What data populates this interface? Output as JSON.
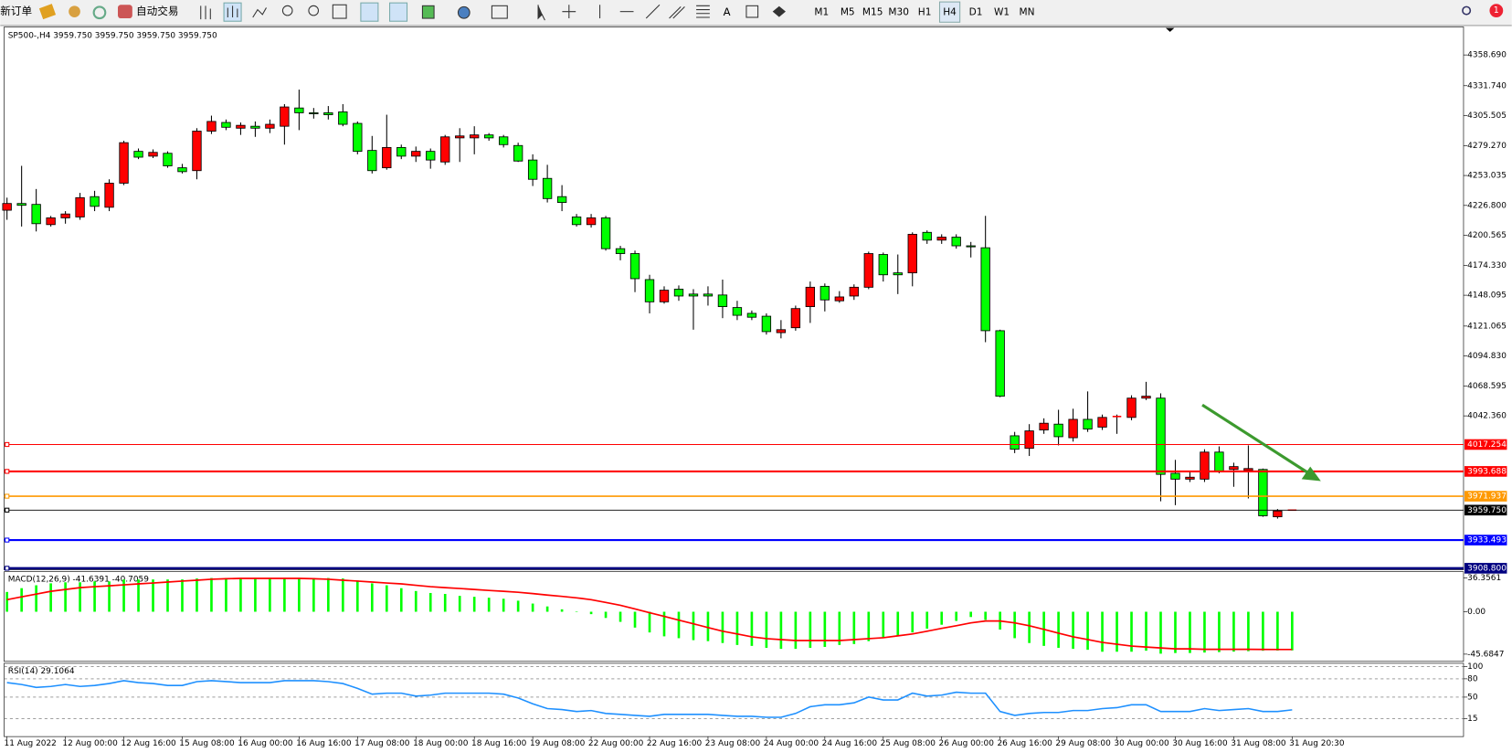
{
  "toolbar": {
    "new_order": "新订单",
    "auto_trading": "自动交易",
    "timeframes": [
      "M1",
      "M5",
      "M15",
      "M30",
      "H1",
      "H4",
      "D1",
      "W1",
      "MN"
    ],
    "active_timeframe": 5,
    "badge": "1"
  },
  "chart_data": [
    {
      "type": "candlestick",
      "title": "SP500-,H4  3959.750 3959.750 3959.750 3959.750",
      "categories": [
        "11 Aug 2022",
        null,
        null,
        null,
        "12 Aug 00:00",
        null,
        null,
        null,
        "12 Aug 16:00",
        null,
        null,
        null,
        "15 Aug 08:00",
        null,
        null,
        null,
        "16 Aug 00:00",
        null,
        null,
        null,
        "16 Aug 16:00",
        null,
        null,
        null,
        "17 Aug 08:00",
        null,
        null,
        null,
        "18 Aug 00:00",
        null,
        null,
        null,
        "18 Aug 16:00",
        null,
        null,
        null,
        "19 Aug 08:00",
        null,
        null,
        null,
        "22 Aug 00:00",
        null,
        null,
        null,
        "22 Aug 16:00",
        null,
        null,
        null,
        "23 Aug 08:00",
        null,
        null,
        null,
        "24 Aug 00:00",
        null,
        null,
        null,
        "24 Aug 16:00",
        null,
        null,
        null,
        "25 Aug 08:00",
        null,
        null,
        null,
        "26 Aug 00:00",
        null,
        null,
        null,
        "26 Aug 16:00",
        null,
        null,
        null,
        "29 Aug 08:00",
        null,
        null,
        null,
        "30 Aug 00:00",
        null,
        null,
        null,
        "30 Aug 16:00",
        null,
        null,
        null,
        "31 Aug 08:00",
        null,
        null,
        null,
        "31 Aug 20:30"
      ],
      "open": [
        4222.6,
        4228.5,
        4227.7,
        4210.0,
        4215.9,
        4216.7,
        4234.5,
        4225.2,
        4246.3,
        4274.2,
        4270.0,
        4272.5,
        4259.8,
        4257.3,
        4291.9,
        4299.5,
        4294.5,
        4296.2,
        4294.5,
        4296.2,
        4312.2,
        4308.0,
        4308.0,
        4308.8,
        4298.7,
        4275.0,
        4259.8,
        4277.6,
        4270.0,
        4274.2,
        4264.9,
        4286.0,
        4286.0,
        4288.6,
        4286.9,
        4279.3,
        4266.6,
        4250.5,
        4234.5,
        4216.7,
        4210.0,
        4215.9,
        4188.9,
        4184.6,
        4161.8,
        4142.3,
        4153.4,
        4149.1,
        4149.1,
        4148.3,
        4137.3,
        4132.2,
        4129.7,
        4115.3,
        4119.6,
        4138.1,
        4155.9,
        4143.2,
        4147.4,
        4155.1,
        4183.8,
        4167.7,
        4167.7,
        4203.2,
        4196.4,
        4199.0,
        4191.4,
        4189.7,
        4117.0,
        4024.9,
        4013.9,
        4030.0,
        4035.1,
        4023.2,
        4039.3,
        4032.5,
        4041.0,
        4041.0,
        4057.9,
        4057.9,
        3992.0,
        3986.9,
        3986.9,
        4010.6,
        3995.4,
        3994.5,
        3995.4,
        3953.9,
        3959.75
      ],
      "high": [
        4233.6,
        4261.5,
        4241.2,
        4217.6,
        4221.8,
        4237.8,
        4239.6,
        4249.7,
        4283.5,
        4276.7,
        4275.9,
        4274.2,
        4263.2,
        4294.5,
        4305.5,
        4302.1,
        4299.5,
        4300.4,
        4302.1,
        4315.6,
        4328.3,
        4312.2,
        4313.9,
        4315.6,
        4300.4,
        4287.7,
        4306.3,
        4280.1,
        4278.4,
        4276.7,
        4288.6,
        4294.5,
        4296.2,
        4290.2,
        4288.6,
        4281.8,
        4271.6,
        4262.4,
        4244.6,
        4219.3,
        4219.3,
        4217.6,
        4191.4,
        4187.2,
        4166.0,
        4155.9,
        4156.7,
        4153.4,
        4155.9,
        4161.8,
        4143.2,
        4134.7,
        4132.2,
        4126.3,
        4139.0,
        4160.1,
        4158.4,
        4151.7,
        4157.6,
        4186.3,
        4185.5,
        4183.8,
        4203.2,
        4204.9,
        4201.5,
        4201.5,
        4194.8,
        4217.6,
        4117.9,
        4028.3,
        4035.1,
        4040.2,
        4047.7,
        4048.6,
        4063.8,
        4043.5,
        4043.5,
        4060.4,
        4072.2,
        4062.1,
        4003.8,
        3992.8,
        4013.1,
        4015.6,
        4001.3,
        4016.5,
        3996.2,
        3960.7,
        3959.75
      ],
      "low": [
        4214.2,
        4208.3,
        4204.0,
        4208.3,
        4210.8,
        4214.2,
        4221.8,
        4221.8,
        4244.6,
        4267.4,
        4268.3,
        4259.8,
        4254.8,
        4249.7,
        4289.4,
        4292.8,
        4288.6,
        4286.9,
        4290.2,
        4280.1,
        4292.8,
        4302.9,
        4302.1,
        4296.2,
        4271.6,
        4254.8,
        4258.1,
        4267.4,
        4264.9,
        4259.0,
        4262.4,
        4264.9,
        4271.6,
        4283.5,
        4277.6,
        4264.9,
        4243.8,
        4229.4,
        4221.8,
        4208.3,
        4207.4,
        4187.2,
        4178.7,
        4150.8,
        4132.2,
        4140.7,
        4143.2,
        4117.9,
        4139.0,
        4128.0,
        4126.3,
        4126.3,
        4113.6,
        4110.3,
        4117.0,
        4123.8,
        4133.9,
        4141.5,
        4144.0,
        4153.4,
        4160.1,
        4149.1,
        4155.9,
        4193.1,
        4193.1,
        4188.9,
        4181.2,
        4106.9,
        4058.7,
        4009.7,
        4007.2,
        4026.6,
        4016.5,
        4019.8,
        4028.3,
        4030.0,
        4026.6,
        4038.5,
        4056.2,
        3967.5,
        3964.1,
        3984.4,
        3984.4,
        3992.0,
        3980.2,
        3970.0,
        3953.9,
        3952.3,
        3959.75
      ],
      "close": [
        4228.5,
        4226.9,
        4210.8,
        4215.9,
        4219.3,
        4233.6,
        4226.0,
        4246.3,
        4281.8,
        4269.1,
        4273.3,
        4261.5,
        4256.4,
        4291.9,
        4300.4,
        4295.3,
        4297.0,
        4294.5,
        4297.9,
        4313.1,
        4308.0,
        4307.1,
        4306.3,
        4297.9,
        4274.2,
        4257.3,
        4277.6,
        4270.0,
        4274.2,
        4266.6,
        4286.9,
        4287.7,
        4288.6,
        4286.0,
        4280.1,
        4265.7,
        4249.7,
        4232.8,
        4229.4,
        4210.0,
        4215.9,
        4188.9,
        4184.6,
        4162.6,
        4142.3,
        4152.5,
        4147.4,
        4147.4,
        4147.4,
        4138.1,
        4130.5,
        4128.8,
        4116.2,
        4117.9,
        4136.4,
        4155.1,
        4144.0,
        4146.6,
        4155.1,
        4184.6,
        4166.0,
        4166.0,
        4201.5,
        4196.4,
        4199.0,
        4191.4,
        4190.5,
        4117.0,
        4059.6,
        4013.1,
        4029.2,
        4035.9,
        4024.1,
        4039.3,
        4030.8,
        4041.0,
        4041.8,
        4057.9,
        4059.6,
        3991.1,
        3986.9,
        3988.6,
        4010.6,
        3993.7,
        3997.9,
        3996.2,
        3954.8,
        3959.0,
        3959.75
      ],
      "up_color": "#ff0000",
      "down_color": "#00ff00",
      "ylim": [
        3908.3,
        4381.5
      ],
      "yticks": [
        {
          "value": 4358.69,
          "label": "4358.690"
        },
        {
          "value": 4331.74,
          "label": "4331.740"
        },
        4305.505,
        {
          "value": 4279.27,
          "label": "4279.270"
        },
        4253.035,
        {
          "value": 4226.8,
          "label": "4226.800"
        },
        4200.565,
        {
          "value": 4174.33,
          "label": "4174.330"
        },
        4148.095,
        4121.065,
        {
          "value": 4094.83,
          "label": "4094.830"
        },
        4068.595,
        {
          "value": 4042.36,
          "label": "4042.360"
        }
      ],
      "hlines": [
        {
          "value": 4017.254,
          "label": "4017.254",
          "color": "#ff0000",
          "line_width": 1
        },
        {
          "value": 3993.688,
          "label": "3993.688",
          "color": "#ff0000",
          "line_width": 2
        },
        {
          "value": 3971.937,
          "label": "3971.937",
          "color": "#ff9900",
          "line_width": 1.5
        },
        {
          "value": 3959.75,
          "label": "3959.750",
          "color": "#000000",
          "line_width": 0.8
        },
        {
          "value": 3933.493,
          "label": "3933.493",
          "color": "#0000ff",
          "line_width": 2
        },
        {
          "value": 3908.8,
          "label": "3908.800",
          "color": "#000080",
          "line_width": 2.5
        }
      ]
    },
    {
      "type": "macd",
      "title": "MACD(12,26,9) -41.6391 -40.7059",
      "series": [
        {
          "kind": "histogram",
          "color": "#00ff00",
          "values": [
            21.3,
            25.4,
            28.5,
            30.6,
            31.7,
            31.7,
            32.7,
            32.7,
            34.8,
            34.8,
            34.8,
            34.8,
            34.8,
            35.8,
            36.3,
            36.3,
            36.3,
            36.3,
            36.3,
            36.3,
            36.3,
            36.3,
            36.3,
            35.8,
            33.7,
            30.6,
            28.5,
            25.4,
            22.3,
            20.2,
            19.2,
            17.1,
            16.1,
            15.1,
            14.0,
            11.9,
            8.8,
            5.7,
            2.6,
            -0.5,
            -2.6,
            -6.7,
            -10.9,
            -17.1,
            -22.3,
            -26.5,
            -28.5,
            -30.6,
            -31.7,
            -33.7,
            -35.8,
            -36.8,
            -38.9,
            -40.0,
            -40.0,
            -38.9,
            -37.9,
            -35.8,
            -34.8,
            -31.7,
            -28.5,
            -26.5,
            -22.3,
            -18.2,
            -14.0,
            -9.9,
            -5.7,
            -8.8,
            -19.2,
            -28.5,
            -33.7,
            -36.8,
            -38.9,
            -40.0,
            -41.0,
            -43.1,
            -43.1,
            -43.1,
            -42.0,
            -45.2,
            -44.5,
            -44.5,
            -44.0,
            -43.5,
            -43.0,
            -42.5,
            -42.0,
            -41.8,
            -41.6391
          ]
        },
        {
          "kind": "line",
          "color": "#ff0000",
          "values": [
            13,
            16,
            19,
            22,
            24,
            26,
            27,
            28,
            29,
            30,
            31,
            32,
            33,
            34,
            35,
            35.5,
            36,
            36,
            36,
            36,
            36,
            35.5,
            35,
            34,
            33,
            32,
            31,
            30,
            28.5,
            27,
            26,
            25,
            24,
            23,
            22,
            21,
            19.5,
            18,
            16.5,
            15,
            13,
            10,
            7,
            3,
            -1,
            -5,
            -9,
            -13,
            -17,
            -21,
            -24,
            -27,
            -29,
            -30,
            -31,
            -31,
            -31,
            -31,
            -30,
            -29,
            -28,
            -26,
            -24,
            -21,
            -18,
            -15,
            -12,
            -10,
            -10,
            -12,
            -15,
            -19,
            -23,
            -27,
            -30,
            -33,
            -35,
            -37,
            -38,
            -39,
            -40,
            -40,
            -40.5,
            -40.5,
            -40.5,
            -40.5,
            -40.6,
            -40.7,
            -40.7059
          ]
        }
      ],
      "ylim": [
        -51.4,
        40
      ],
      "yticks": [
        36.3561,
        {
          "value": 0,
          "label": "0.00"
        },
        -45.6847
      ]
    },
    {
      "type": "line",
      "title": "RSI(14) 29.1064",
      "color": "#1e90ff",
      "values": [
        73.8,
        70.6,
        65.9,
        67.5,
        70.6,
        67.5,
        69.0,
        72.2,
        76.9,
        73.8,
        72.2,
        69.0,
        69.0,
        75.4,
        76.9,
        75.4,
        73.8,
        73.8,
        73.8,
        76.9,
        76.9,
        76.9,
        75.4,
        72.2,
        64.3,
        54.8,
        56.4,
        56.4,
        51.7,
        53.2,
        56.4,
        56.4,
        56.4,
        56.4,
        54.8,
        48.5,
        39.0,
        31.1,
        29.5,
        26.4,
        28.0,
        23.2,
        21.6,
        20.1,
        18.5,
        21.6,
        21.6,
        21.6,
        21.6,
        20.1,
        18.5,
        18.5,
        16.9,
        16.9,
        23.2,
        34.3,
        37.4,
        37.4,
        40.6,
        50.1,
        45.3,
        45.3,
        56.4,
        51.7,
        53.2,
        58.0,
        56.4,
        56.4,
        26.4,
        20.1,
        23.2,
        24.8,
        24.8,
        28.0,
        28.0,
        31.1,
        32.7,
        37.4,
        37.4,
        26.4,
        26.4,
        26.4,
        31.1,
        28.0,
        29.5,
        31.1,
        26.4,
        26.4,
        29.1064
      ],
      "ylim": [
        -11.5,
        105.4
      ],
      "yticks": [
        100,
        80,
        50,
        15
      ]
    }
  ]
}
